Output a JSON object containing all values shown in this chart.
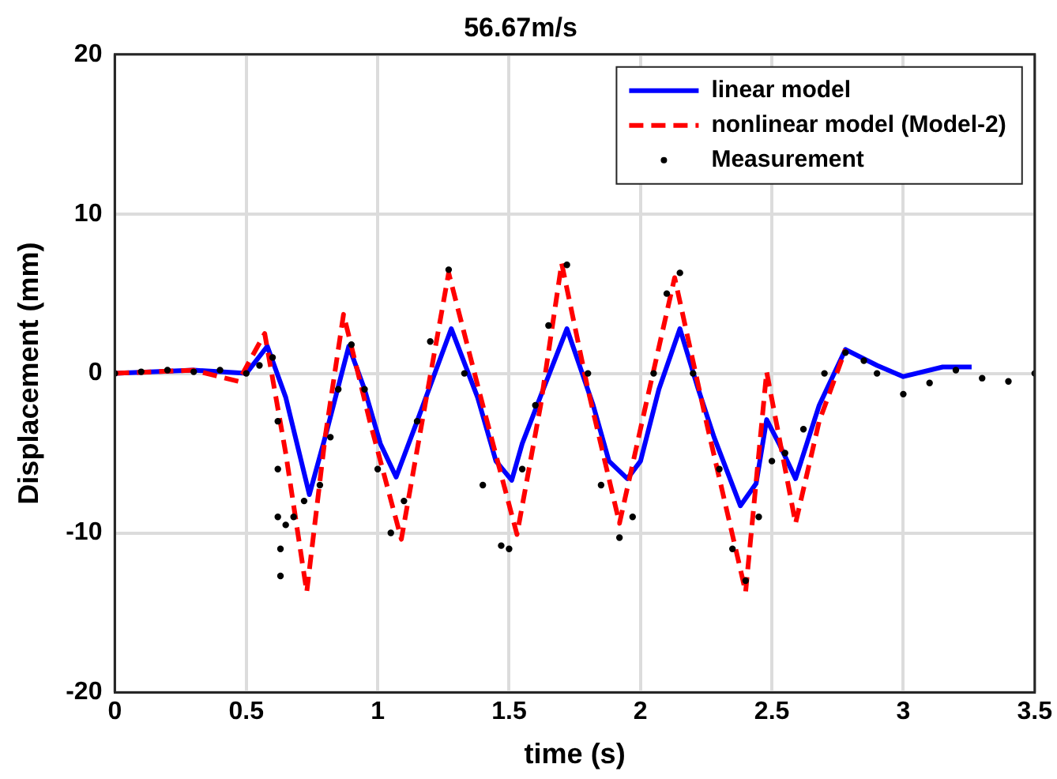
{
  "chart_data": {
    "type": "line",
    "title": "56.67m/s",
    "xlabel": "time (s)",
    "ylabel": "Displacement (mm)",
    "xlim": [
      0,
      3.5
    ],
    "xticks": [
      0,
      0.5,
      1,
      1.5,
      2,
      2.5,
      3,
      3.5
    ],
    "ylim": [
      -20,
      20
    ],
    "yticks": [
      -20,
      -10,
      0,
      10,
      20
    ],
    "grid": true,
    "legend": "top right",
    "series": [
      {
        "name": "linear model",
        "color": "#0000ff",
        "line_style": "solid",
        "marker": "none",
        "x": [
          0,
          0.3,
          0.5,
          0.58,
          0.65,
          0.74,
          0.8,
          0.89,
          0.95,
          1.01,
          1.07,
          1.15,
          1.28,
          1.38,
          1.45,
          1.51,
          1.55,
          1.63,
          1.72,
          1.82,
          1.88,
          1.95,
          2.0,
          2.07,
          2.15,
          2.22,
          2.28,
          2.38,
          2.44,
          2.48,
          2.53,
          2.59,
          2.68,
          2.78,
          2.9,
          3.0,
          3.15,
          3.26
        ],
        "values": [
          0,
          0.2,
          0,
          1.7,
          -1.5,
          -7.6,
          -4,
          1.7,
          -1,
          -4.4,
          -6.5,
          -3,
          2.8,
          -1.5,
          -5.5,
          -6.7,
          -4.4,
          -1,
          2.8,
          -2,
          -5.5,
          -6.6,
          -5.5,
          -1,
          2.8,
          -1,
          -4,
          -8.3,
          -6.9,
          -2.9,
          -4.5,
          -6.6,
          -2,
          1.5,
          0.5,
          -0.2,
          0.4,
          0.4
        ]
      },
      {
        "name": "nonlinear model (Model-2)",
        "color": "#ff0000",
        "line_style": "dashed",
        "marker": "none",
        "x": [
          0,
          0.3,
          0.47,
          0.57,
          0.65,
          0.73,
          0.8,
          0.87,
          0.97,
          1.09,
          1.18,
          1.27,
          1.4,
          1.53,
          1.62,
          1.7,
          1.8,
          1.92,
          2.02,
          2.13,
          2.25,
          2.4,
          2.48,
          2.59,
          2.68,
          2.78
        ],
        "values": [
          0,
          0.2,
          -0.5,
          2.5,
          -5,
          -13.7,
          -4,
          3.7,
          -3,
          -10.4,
          -2,
          6.3,
          -2,
          -10.1,
          -2,
          6.9,
          -1,
          -9.4,
          -2,
          6,
          -3,
          -13.7,
          0.1,
          -9.4,
          -3,
          1.5
        ]
      },
      {
        "name": "Measurement",
        "color": "#000000",
        "type": "scatter",
        "marker": "circle",
        "x": [
          0,
          0.1,
          0.2,
          0.3,
          0.4,
          0.5,
          0.55,
          0.6,
          0.62,
          0.62,
          0.62,
          0.63,
          0.63,
          0.65,
          0.68,
          0.72,
          0.78,
          0.82,
          0.85,
          0.9,
          0.95,
          1.0,
          1.05,
          1.1,
          1.15,
          1.2,
          1.27,
          1.33,
          1.4,
          1.47,
          1.5,
          1.55,
          1.6,
          1.65,
          1.72,
          1.8,
          1.85,
          1.92,
          1.97,
          2.05,
          2.1,
          2.15,
          2.2,
          2.3,
          2.35,
          2.4,
          2.45,
          2.5,
          2.55,
          2.62,
          2.7,
          2.78,
          2.85,
          2.9,
          3.0,
          3.1,
          3.2,
          3.3,
          3.4,
          3.5
        ],
        "values": [
          0,
          0.1,
          0.2,
          0.1,
          0.2,
          0,
          0.5,
          1,
          -3,
          -6,
          -9,
          -11,
          -12.7,
          -9.5,
          -9,
          -8,
          -7,
          -4,
          -1,
          1.8,
          -1,
          -6,
          -10,
          -8,
          -3,
          2,
          6.5,
          0,
          -7,
          -10.8,
          -11,
          -6,
          -2,
          3,
          6.8,
          0,
          -7,
          -10.3,
          -9,
          0,
          5,
          6.3,
          0,
          -6,
          -11,
          -13,
          -9,
          -5.5,
          -5,
          -3.5,
          0,
          1.3,
          0.8,
          0,
          -1.3,
          -0.6,
          0.2,
          -0.3,
          -0.5,
          0
        ]
      }
    ]
  }
}
